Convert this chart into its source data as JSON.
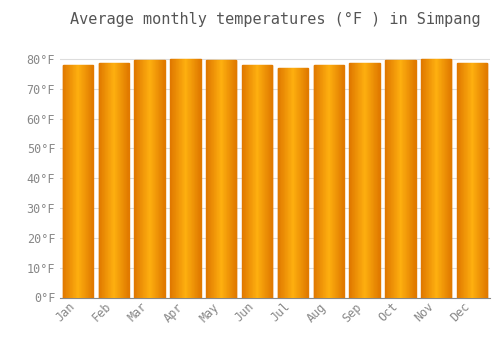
{
  "title": "Average monthly temperatures (°F ) in Simpang",
  "months": [
    "Jan",
    "Feb",
    "Mar",
    "Apr",
    "May",
    "Jun",
    "Jul",
    "Aug",
    "Sep",
    "Oct",
    "Nov",
    "Dec"
  ],
  "values": [
    78.0,
    78.5,
    79.5,
    80.0,
    79.5,
    78.0,
    77.0,
    78.0,
    78.5,
    79.5,
    80.0,
    78.5
  ],
  "bar_color": "#FFA500",
  "bar_edge_color": "#E08000",
  "background_color": "#FFFFFF",
  "plot_bg_color": "#FFFFFF",
  "grid_color": "#DDDDDD",
  "tick_label_color": "#888888",
  "title_color": "#555555",
  "ylim": [
    0,
    88
  ],
  "yticks": [
    0,
    10,
    20,
    30,
    40,
    50,
    60,
    70,
    80
  ],
  "title_fontsize": 11,
  "tick_fontsize": 8.5,
  "bar_width": 0.85
}
